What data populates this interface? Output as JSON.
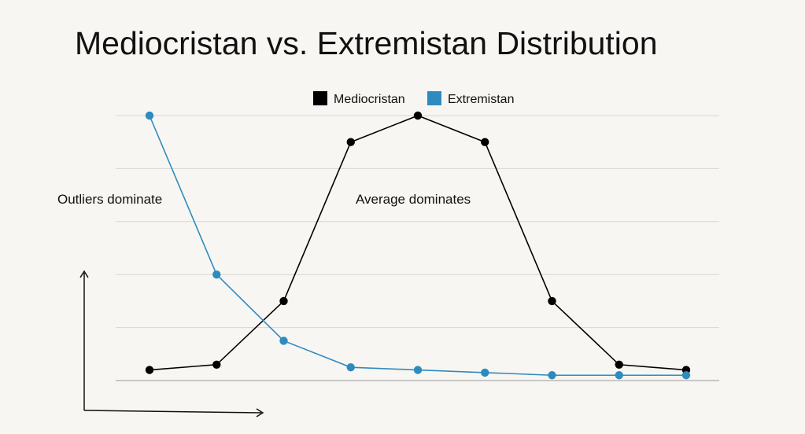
{
  "chart_data": {
    "type": "line",
    "title": "Mediocristan vs. Extremistan Distribution",
    "x": [
      1,
      2,
      3,
      4,
      5,
      6,
      7,
      8,
      9
    ],
    "ylim": [
      0,
      10
    ],
    "grid": true,
    "legend_position": "top-center",
    "series": [
      {
        "name": "Mediocristan",
        "color": "#000000",
        "values": [
          0.4,
          0.6,
          3,
          9,
          10,
          9,
          3,
          0.6,
          0.4
        ]
      },
      {
        "name": "Extremistan",
        "color": "#2e8bbf",
        "values": [
          10,
          4,
          1.5,
          0.5,
          0.4,
          0.3,
          0.2,
          0.2,
          0.2
        ]
      }
    ],
    "annotations": [
      {
        "text": "Outliers dominate"
      },
      {
        "text": "Average dominates"
      }
    ]
  }
}
